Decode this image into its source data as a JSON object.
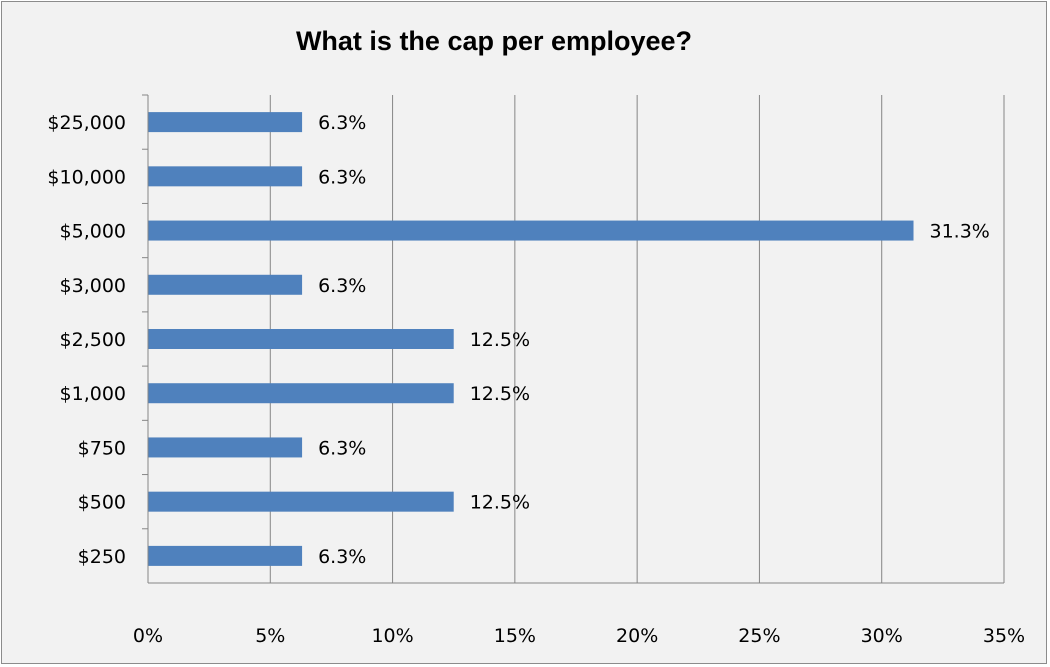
{
  "chart_data": {
    "type": "bar",
    "orientation": "horizontal",
    "title": "What is the cap per employee?",
    "xlabel": "",
    "ylabel": "",
    "categories": [
      "$25,000",
      "$10,000",
      "$5,000",
      "$3,000",
      "$2,500",
      "$1,000",
      "$750",
      "$500",
      "$250"
    ],
    "values": [
      6.3,
      6.3,
      31.3,
      6.3,
      12.5,
      12.5,
      6.3,
      12.5,
      6.3
    ],
    "data_labels": [
      "6.3%",
      "6.3%",
      "31.3%",
      "6.3%",
      "12.5%",
      "12.5%",
      "6.3%",
      "12.5%",
      "6.3%"
    ],
    "xlim": [
      0,
      35
    ],
    "x_ticks": [
      0,
      5,
      10,
      15,
      20,
      25,
      30,
      35
    ],
    "x_tick_labels": [
      "0%",
      "5%",
      "10%",
      "15%",
      "20%",
      "25%",
      "30%",
      "35%"
    ],
    "grid": "vertical",
    "legend": "none",
    "colors": {
      "bar": "#4f81bd",
      "grid": "#868686",
      "background": "#f2f2f2",
      "border": "#8c8c8c"
    }
  }
}
